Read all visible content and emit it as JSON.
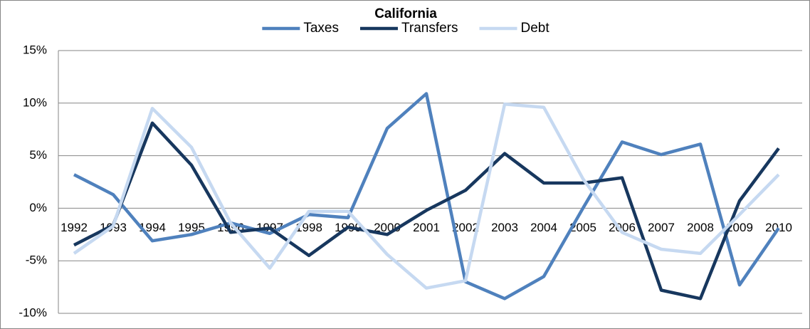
{
  "chart_data": {
    "type": "line",
    "title": "California",
    "categories": [
      "1992",
      "1993",
      "1994",
      "1995",
      "1996",
      "1997",
      "1998",
      "1999",
      "2000",
      "2001",
      "2002",
      "2003",
      "2004",
      "2005",
      "2006",
      "2007",
      "2008",
      "2009",
      "2010"
    ],
    "series": [
      {
        "name": "Taxes",
        "color": "#4f81bd",
        "values": [
          3.2,
          1.3,
          -3.1,
          -2.5,
          -1.4,
          -2.4,
          -0.6,
          -0.9,
          7.6,
          10.9,
          -7.0,
          -8.6,
          -6.5,
          0.0,
          6.3,
          5.1,
          6.1,
          -7.3,
          -1.9
        ]
      },
      {
        "name": "Transfers",
        "color": "#17375e",
        "values": [
          -3.5,
          -1.6,
          8.1,
          4.1,
          -2.3,
          -1.9,
          -4.5,
          -1.8,
          -2.5,
          -0.2,
          1.7,
          5.2,
          2.4,
          2.4,
          2.9,
          -7.8,
          -8.6,
          0.7,
          5.7
        ]
      },
      {
        "name": "Debt",
        "color": "#c6d9f1",
        "values": [
          -4.3,
          -1.7,
          9.5,
          5.8,
          -1.4,
          -5.7,
          -0.3,
          -0.3,
          -4.4,
          -7.6,
          -6.9,
          9.9,
          9.6,
          2.8,
          -2.3,
          -3.9,
          -4.3,
          -0.6,
          3.2
        ]
      }
    ],
    "ylim": [
      -10,
      15
    ],
    "yticks": [
      {
        "value": -10,
        "label": "-10%"
      },
      {
        "value": -5,
        "label": "-5%"
      },
      {
        "value": 0,
        "label": "0%"
      },
      {
        "value": 5,
        "label": "5%"
      },
      {
        "value": 10,
        "label": "10%"
      },
      {
        "value": 15,
        "label": "15%"
      }
    ],
    "grid": true,
    "legend": "top"
  }
}
